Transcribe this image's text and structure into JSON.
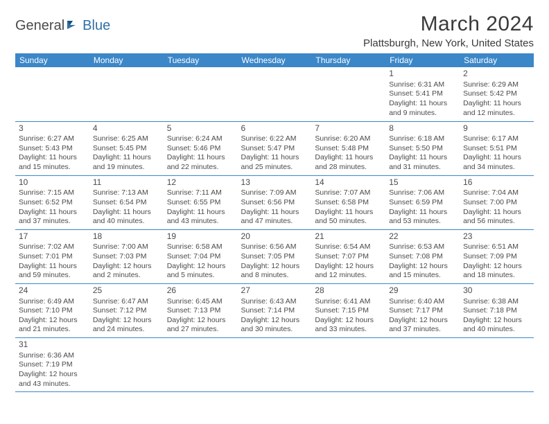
{
  "logo": {
    "text1": "General",
    "text2": "Blue"
  },
  "title": "March 2024",
  "location": "Plattsburgh, New York, United States",
  "colors": {
    "header_bg": "#3b87c8",
    "header_fg": "#ffffff",
    "border": "#3b87c8",
    "text": "#4a4a4a",
    "logo_blue": "#2f6fa8"
  },
  "day_headers": [
    "Sunday",
    "Monday",
    "Tuesday",
    "Wednesday",
    "Thursday",
    "Friday",
    "Saturday"
  ],
  "weeks": [
    [
      null,
      null,
      null,
      null,
      null,
      {
        "n": "1",
        "sr": "6:31 AM",
        "ss": "5:41 PM",
        "dl": "11 hours and 9 minutes."
      },
      {
        "n": "2",
        "sr": "6:29 AM",
        "ss": "5:42 PM",
        "dl": "11 hours and 12 minutes."
      }
    ],
    [
      {
        "n": "3",
        "sr": "6:27 AM",
        "ss": "5:43 PM",
        "dl": "11 hours and 15 minutes."
      },
      {
        "n": "4",
        "sr": "6:25 AM",
        "ss": "5:45 PM",
        "dl": "11 hours and 19 minutes."
      },
      {
        "n": "5",
        "sr": "6:24 AM",
        "ss": "5:46 PM",
        "dl": "11 hours and 22 minutes."
      },
      {
        "n": "6",
        "sr": "6:22 AM",
        "ss": "5:47 PM",
        "dl": "11 hours and 25 minutes."
      },
      {
        "n": "7",
        "sr": "6:20 AM",
        "ss": "5:48 PM",
        "dl": "11 hours and 28 minutes."
      },
      {
        "n": "8",
        "sr": "6:18 AM",
        "ss": "5:50 PM",
        "dl": "11 hours and 31 minutes."
      },
      {
        "n": "9",
        "sr": "6:17 AM",
        "ss": "5:51 PM",
        "dl": "11 hours and 34 minutes."
      }
    ],
    [
      {
        "n": "10",
        "sr": "7:15 AM",
        "ss": "6:52 PM",
        "dl": "11 hours and 37 minutes."
      },
      {
        "n": "11",
        "sr": "7:13 AM",
        "ss": "6:54 PM",
        "dl": "11 hours and 40 minutes."
      },
      {
        "n": "12",
        "sr": "7:11 AM",
        "ss": "6:55 PM",
        "dl": "11 hours and 43 minutes."
      },
      {
        "n": "13",
        "sr": "7:09 AM",
        "ss": "6:56 PM",
        "dl": "11 hours and 47 minutes."
      },
      {
        "n": "14",
        "sr": "7:07 AM",
        "ss": "6:58 PM",
        "dl": "11 hours and 50 minutes."
      },
      {
        "n": "15",
        "sr": "7:06 AM",
        "ss": "6:59 PM",
        "dl": "11 hours and 53 minutes."
      },
      {
        "n": "16",
        "sr": "7:04 AM",
        "ss": "7:00 PM",
        "dl": "11 hours and 56 minutes."
      }
    ],
    [
      {
        "n": "17",
        "sr": "7:02 AM",
        "ss": "7:01 PM",
        "dl": "11 hours and 59 minutes."
      },
      {
        "n": "18",
        "sr": "7:00 AM",
        "ss": "7:03 PM",
        "dl": "12 hours and 2 minutes."
      },
      {
        "n": "19",
        "sr": "6:58 AM",
        "ss": "7:04 PM",
        "dl": "12 hours and 5 minutes."
      },
      {
        "n": "20",
        "sr": "6:56 AM",
        "ss": "7:05 PM",
        "dl": "12 hours and 8 minutes."
      },
      {
        "n": "21",
        "sr": "6:54 AM",
        "ss": "7:07 PM",
        "dl": "12 hours and 12 minutes."
      },
      {
        "n": "22",
        "sr": "6:53 AM",
        "ss": "7:08 PM",
        "dl": "12 hours and 15 minutes."
      },
      {
        "n": "23",
        "sr": "6:51 AM",
        "ss": "7:09 PM",
        "dl": "12 hours and 18 minutes."
      }
    ],
    [
      {
        "n": "24",
        "sr": "6:49 AM",
        "ss": "7:10 PM",
        "dl": "12 hours and 21 minutes."
      },
      {
        "n": "25",
        "sr": "6:47 AM",
        "ss": "7:12 PM",
        "dl": "12 hours and 24 minutes."
      },
      {
        "n": "26",
        "sr": "6:45 AM",
        "ss": "7:13 PM",
        "dl": "12 hours and 27 minutes."
      },
      {
        "n": "27",
        "sr": "6:43 AM",
        "ss": "7:14 PM",
        "dl": "12 hours and 30 minutes."
      },
      {
        "n": "28",
        "sr": "6:41 AM",
        "ss": "7:15 PM",
        "dl": "12 hours and 33 minutes."
      },
      {
        "n": "29",
        "sr": "6:40 AM",
        "ss": "7:17 PM",
        "dl": "12 hours and 37 minutes."
      },
      {
        "n": "30",
        "sr": "6:38 AM",
        "ss": "7:18 PM",
        "dl": "12 hours and 40 minutes."
      }
    ],
    [
      {
        "n": "31",
        "sr": "6:36 AM",
        "ss": "7:19 PM",
        "dl": "12 hours and 43 minutes."
      },
      null,
      null,
      null,
      null,
      null,
      null
    ]
  ],
  "labels": {
    "sunrise": "Sunrise: ",
    "sunset": "Sunset: ",
    "daylight": "Daylight: "
  }
}
